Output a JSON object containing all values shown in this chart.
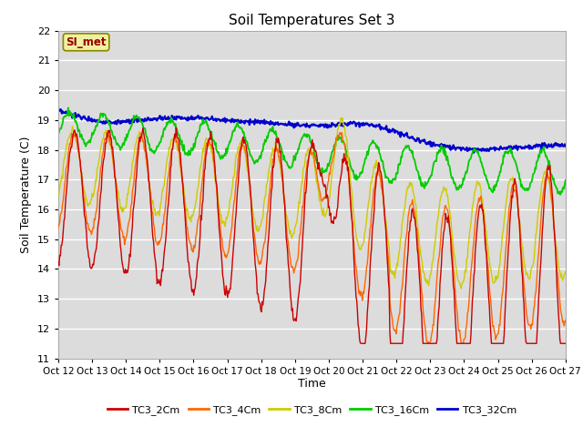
{
  "title": "Soil Temperatures Set 3",
  "xlabel": "Time",
  "ylabel": "Soil Temperature (C)",
  "ylim": [
    11.0,
    22.0
  ],
  "yticks": [
    11.0,
    12.0,
    13.0,
    14.0,
    15.0,
    16.0,
    17.0,
    18.0,
    19.0,
    20.0,
    21.0,
    22.0
  ],
  "xtick_labels": [
    "Oct 12",
    "Oct 13",
    "Oct 14",
    "Oct 15",
    "Oct 16",
    "Oct 17",
    "Oct 18",
    "Oct 19",
    "Oct 20",
    "Oct 21",
    "Oct 22",
    "Oct 23",
    "Oct 24",
    "Oct 25",
    "Oct 26",
    "Oct 27"
  ],
  "colors": {
    "TC3_2Cm": "#cc0000",
    "TC3_4Cm": "#ff6600",
    "TC3_8Cm": "#cccc00",
    "TC3_16Cm": "#00cc00",
    "TC3_32Cm": "#0000cc"
  },
  "legend_label": "SI_met",
  "plot_bg": "#dcdcdc",
  "grid_color": "#ffffff",
  "n_points": 720
}
